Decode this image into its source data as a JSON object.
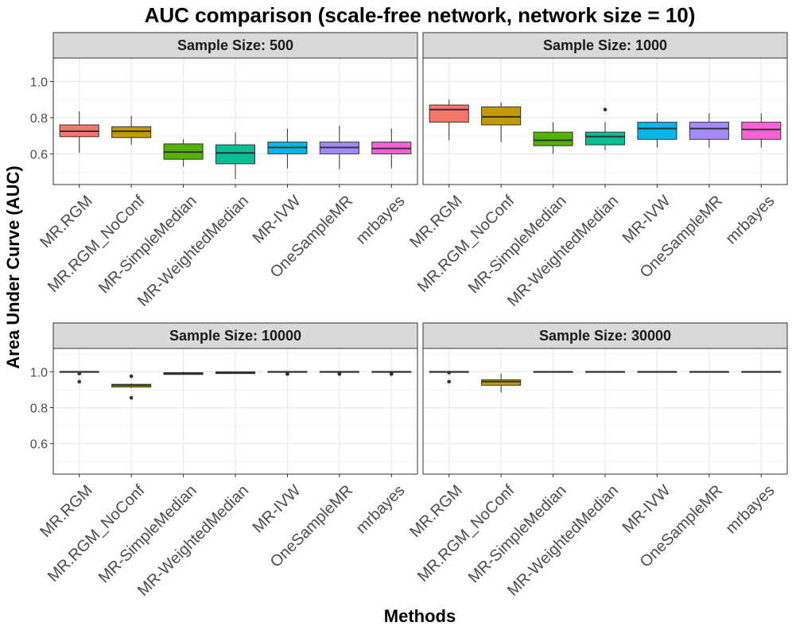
{
  "chart_data": {
    "type": "boxplot",
    "title": "AUC comparison (scale-free network, network size = 10)",
    "xlabel": "Methods",
    "ylabel": "Area Under Curve (AUC)",
    "ylim": [
      0.43,
      1.13
    ],
    "yticks": [
      0.6,
      0.8,
      1.0
    ],
    "ytick_labels": [
      "0.6",
      "0.8",
      "1.0"
    ],
    "categories": [
      "MR.RGM",
      "MR.RGM_NoConf",
      "MR-SimpleMedian",
      "MR-WeightedMedian",
      "MR-IVW",
      "OneSampleMR",
      "mrbayes"
    ],
    "colors": [
      "#F8766D",
      "#C49A00",
      "#53B400",
      "#00C094",
      "#00B6EB",
      "#A58AFF",
      "#FB61D7"
    ],
    "panels": [
      {
        "strip": "Sample Size: 500",
        "boxes": [
          {
            "min": 0.605,
            "q1": 0.695,
            "median": 0.725,
            "q3": 0.76,
            "max": 0.835,
            "outliers": []
          },
          {
            "min": 0.65,
            "q1": 0.69,
            "median": 0.725,
            "q3": 0.75,
            "max": 0.81,
            "outliers": []
          },
          {
            "min": 0.53,
            "q1": 0.57,
            "median": 0.61,
            "q3": 0.655,
            "max": 0.68,
            "outliers": []
          },
          {
            "min": 0.46,
            "q1": 0.545,
            "median": 0.605,
            "q3": 0.65,
            "max": 0.72,
            "outliers": []
          },
          {
            "min": 0.52,
            "q1": 0.6,
            "median": 0.635,
            "q3": 0.665,
            "max": 0.74,
            "outliers": []
          },
          {
            "min": 0.515,
            "q1": 0.6,
            "median": 0.635,
            "q3": 0.665,
            "max": 0.755,
            "outliers": []
          },
          {
            "min": 0.52,
            "q1": 0.6,
            "median": 0.63,
            "q3": 0.665,
            "max": 0.74,
            "outliers": []
          }
        ]
      },
      {
        "strip": "Sample Size: 1000",
        "boxes": [
          {
            "min": 0.675,
            "q1": 0.775,
            "median": 0.845,
            "q3": 0.87,
            "max": 0.9,
            "outliers": []
          },
          {
            "min": 0.665,
            "q1": 0.76,
            "median": 0.805,
            "q3": 0.86,
            "max": 0.885,
            "outliers": []
          },
          {
            "min": 0.6,
            "q1": 0.645,
            "median": 0.675,
            "q3": 0.72,
            "max": 0.775,
            "outliers": []
          },
          {
            "min": 0.62,
            "q1": 0.65,
            "median": 0.695,
            "q3": 0.72,
            "max": 0.775,
            "outliers": [
              0.845
            ]
          },
          {
            "min": 0.635,
            "q1": 0.68,
            "median": 0.74,
            "q3": 0.775,
            "max": 0.825,
            "outliers": []
          },
          {
            "min": 0.635,
            "q1": 0.68,
            "median": 0.74,
            "q3": 0.775,
            "max": 0.825,
            "outliers": []
          },
          {
            "min": 0.635,
            "q1": 0.68,
            "median": 0.735,
            "q3": 0.775,
            "max": 0.825,
            "outliers": []
          }
        ]
      },
      {
        "strip": "Sample Size: 10000",
        "boxes": [
          {
            "min": 1.0,
            "q1": 1.0,
            "median": 1.0,
            "q3": 1.0,
            "max": 1.0,
            "outliers": [
              0.99,
              0.945
            ]
          },
          {
            "min": 0.91,
            "q1": 0.915,
            "median": 0.925,
            "q3": 0.93,
            "max": 0.935,
            "outliers": [
              0.975,
              0.855
            ]
          },
          {
            "min": 0.985,
            "q1": 0.985,
            "median": 0.99,
            "q3": 0.995,
            "max": 1.0,
            "outliers": []
          },
          {
            "min": 0.99,
            "q1": 0.99,
            "median": 0.995,
            "q3": 1.0,
            "max": 1.0,
            "outliers": []
          },
          {
            "min": 0.995,
            "q1": 1.0,
            "median": 1.0,
            "q3": 1.0,
            "max": 1.0,
            "outliers": [
              0.99,
              0.987
            ]
          },
          {
            "min": 1.0,
            "q1": 1.0,
            "median": 1.0,
            "q3": 1.0,
            "max": 1.0,
            "outliers": [
              0.99,
              0.987
            ]
          },
          {
            "min": 1.0,
            "q1": 1.0,
            "median": 1.0,
            "q3": 1.0,
            "max": 1.0,
            "outliers": [
              0.99,
              0.987
            ]
          }
        ]
      },
      {
        "strip": "Sample Size: 30000",
        "boxes": [
          {
            "min": 1.0,
            "q1": 1.0,
            "median": 1.0,
            "q3": 1.0,
            "max": 1.0,
            "outliers": [
              0.995,
              0.945
            ]
          },
          {
            "min": 0.885,
            "q1": 0.925,
            "median": 0.945,
            "q3": 0.955,
            "max": 0.99,
            "outliers": []
          },
          {
            "min": 1.0,
            "q1": 1.0,
            "median": 1.0,
            "q3": 1.0,
            "max": 1.0,
            "outliers": []
          },
          {
            "min": 1.0,
            "q1": 1.0,
            "median": 1.0,
            "q3": 1.0,
            "max": 1.0,
            "outliers": []
          },
          {
            "min": 1.0,
            "q1": 1.0,
            "median": 1.0,
            "q3": 1.0,
            "max": 1.0,
            "outliers": []
          },
          {
            "min": 1.0,
            "q1": 1.0,
            "median": 1.0,
            "q3": 1.0,
            "max": 1.0,
            "outliers": []
          },
          {
            "min": 1.0,
            "q1": 1.0,
            "median": 1.0,
            "q3": 1.0,
            "max": 1.0,
            "outliers": []
          }
        ]
      }
    ]
  }
}
